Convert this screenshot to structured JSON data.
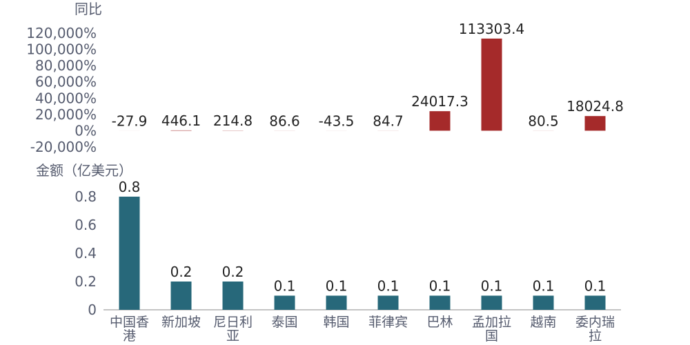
{
  "chart_data": [
    {
      "type": "bar",
      "ylabel": "同比",
      "categories": [
        "中国香港",
        "新加坡",
        "尼日利亚",
        "泰国",
        "韩国",
        "菲律宾",
        "巴林",
        "孟加拉国",
        "越南",
        "委内瑞拉"
      ],
      "values": [
        -27.9,
        446.1,
        214.8,
        86.6,
        -43.5,
        84.7,
        24017.3,
        113303.4,
        80.5,
        18024.8
      ],
      "data_labels": [
        "-27.9",
        "446.1",
        "214.8",
        "86.6",
        "-43.5",
        "84.7",
        "24017.3",
        "113303.4",
        "80.5",
        "18024.8"
      ],
      "ylim": [
        -20000,
        120000
      ],
      "yticks": [
        -20000,
        0,
        20000,
        40000,
        60000,
        80000,
        100000,
        120000
      ],
      "ytick_labels": [
        "-20,000%",
        "0%",
        "20,000%",
        "40,000%",
        "60,000%",
        "80,000%",
        "100,000%",
        "120,000%"
      ],
      "color": "#a52a2a",
      "grid": false
    },
    {
      "type": "bar",
      "ylabel": "金额（亿美元）",
      "categories": [
        "中国香港",
        "新加坡",
        "尼日利亚",
        "泰国",
        "韩国",
        "菲律宾",
        "巴林",
        "孟加拉国",
        "越南",
        "委内瑞拉"
      ],
      "x_tick_lines": [
        [
          "中国香",
          "港"
        ],
        [
          "新加坡"
        ],
        [
          "尼日利",
          "亚"
        ],
        [
          "泰国"
        ],
        [
          "韩国"
        ],
        [
          "菲律宾"
        ],
        [
          "巴林"
        ],
        [
          "孟加拉",
          "国"
        ],
        [
          "越南"
        ],
        [
          "委内瑞",
          "拉"
        ]
      ],
      "values": [
        0.8,
        0.2,
        0.2,
        0.1,
        0.1,
        0.1,
        0.1,
        0.1,
        0.1,
        0.1
      ],
      "data_labels": [
        "0.8",
        "0.2",
        "0.2",
        "0.1",
        "0.1",
        "0.1",
        "0.1",
        "0.1",
        "0.1",
        "0.1"
      ],
      "ylim": [
        0,
        0.8
      ],
      "yticks": [
        0,
        0.2,
        0.4,
        0.6,
        0.8
      ],
      "ytick_labels": [
        "0",
        "0.2",
        "0.4",
        "0.6",
        "0.8"
      ],
      "color": "#27687a",
      "grid": false
    }
  ]
}
